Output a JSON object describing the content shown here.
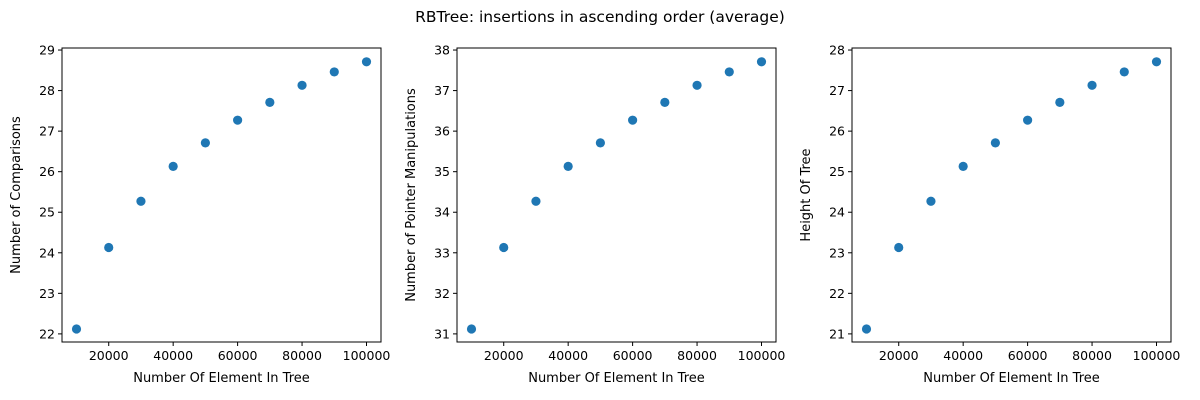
{
  "figure": {
    "title": "RBTree: insertions in ascending order (average)"
  },
  "chart_data": [
    {
      "type": "scatter",
      "title": "",
      "xlabel": "Number Of Element In Tree",
      "ylabel": "Number of Comparisons",
      "x": [
        10000,
        20000,
        30000,
        40000,
        50000,
        60000,
        70000,
        80000,
        90000,
        100000
      ],
      "y": [
        22.12,
        24.13,
        25.27,
        26.13,
        26.71,
        27.27,
        27.71,
        28.13,
        28.46,
        28.71
      ],
      "xlim": [
        5500,
        104500
      ],
      "ylim": [
        21.8,
        29.05
      ],
      "xticks": [
        20000,
        40000,
        60000,
        80000,
        100000
      ],
      "yticks": [
        22,
        23,
        24,
        25,
        26,
        27,
        28,
        29
      ],
      "color": "#1f77b4",
      "grid": false
    },
    {
      "type": "scatter",
      "title": "",
      "xlabel": "Number Of Element In Tree",
      "ylabel": "Number of Pointer Manipulations",
      "x": [
        10000,
        20000,
        30000,
        40000,
        50000,
        60000,
        70000,
        80000,
        90000,
        100000
      ],
      "y": [
        31.12,
        33.13,
        34.27,
        35.13,
        35.71,
        36.27,
        36.71,
        37.13,
        37.46,
        37.71
      ],
      "xlim": [
        5500,
        104500
      ],
      "ylim": [
        30.8,
        38.05
      ],
      "xticks": [
        20000,
        40000,
        60000,
        80000,
        100000
      ],
      "yticks": [
        31,
        32,
        33,
        34,
        35,
        36,
        37,
        38
      ],
      "color": "#1f77b4",
      "grid": false
    },
    {
      "type": "scatter",
      "title": "",
      "xlabel": "Number Of Element In Tree",
      "ylabel": "Height Of Tree",
      "x": [
        10000,
        20000,
        30000,
        40000,
        50000,
        60000,
        70000,
        80000,
        90000,
        100000
      ],
      "y": [
        21.12,
        23.13,
        24.27,
        25.13,
        25.71,
        26.27,
        26.71,
        27.13,
        27.46,
        27.71
      ],
      "xlim": [
        5500,
        104500
      ],
      "ylim": [
        20.8,
        28.05
      ],
      "xticks": [
        20000,
        40000,
        60000,
        80000,
        100000
      ],
      "yticks": [
        21,
        22,
        23,
        24,
        25,
        26,
        27,
        28
      ],
      "color": "#1f77b4",
      "grid": false
    }
  ]
}
